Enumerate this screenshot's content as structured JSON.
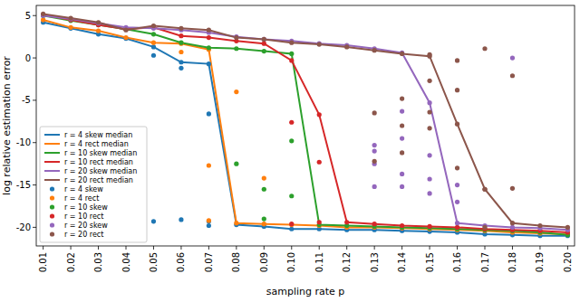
{
  "chart_data": {
    "type": "line",
    "x_label": "sampling rate p",
    "y_label": "log relative estimation error",
    "x": [
      0.01,
      0.02,
      0.03,
      0.04,
      0.05,
      0.06,
      0.07,
      0.08,
      0.09,
      0.1,
      0.11,
      0.12,
      0.13,
      0.14,
      0.15,
      0.16,
      0.17,
      0.18,
      0.19,
      0.2
    ],
    "xlim": [
      0.0075,
      0.2025
    ],
    "ylim": [
      -22.2,
      6.2
    ],
    "xticks": [
      0.01,
      0.02,
      0.03,
      0.04,
      0.05,
      0.06,
      0.07,
      0.08,
      0.09,
      {
        "value": 0.1,
        "label": "0.10"
      },
      0.11,
      0.12,
      0.13,
      0.14,
      0.15,
      0.16,
      0.17,
      0.18,
      0.19,
      {
        "value": 0.2,
        "label": "0.20"
      }
    ],
    "yticks": [
      -20,
      -15,
      -10,
      -5,
      0,
      5
    ],
    "grid": false,
    "legend": "lower left",
    "series": [
      {
        "name": "r = 4 skew median",
        "type": "line",
        "color": "#1f77b4",
        "values": [
          4.2,
          3.5,
          2.8,
          2.3,
          1.3,
          -0.5,
          -0.7,
          -19.7,
          -19.9,
          -20.2,
          -20.2,
          -20.3,
          -20.3,
          -20.4,
          -20.5,
          -20.6,
          -20.8,
          -20.9,
          -21.0,
          -21.0
        ]
      },
      {
        "name": "r = 4 rect median",
        "type": "line",
        "color": "#ff7f0e",
        "values": [
          4.5,
          3.6,
          3.2,
          2.4,
          1.8,
          1.7,
          1.0,
          -19.5,
          -19.6,
          -19.7,
          -19.8,
          -20.0,
          -20.0,
          -20.1,
          -20.2,
          -20.3,
          -20.4,
          -20.6,
          -20.7,
          -20.8
        ]
      },
      {
        "name": "r = 10 skew median",
        "type": "line",
        "color": "#2ca02c",
        "values": [
          5.0,
          4.4,
          3.9,
          3.4,
          2.8,
          1.8,
          1.2,
          1.1,
          0.8,
          0.5,
          -19.7,
          -19.8,
          -19.9,
          -20.0,
          -20.1,
          -20.2,
          -20.3,
          -20.4,
          -20.6,
          -20.9
        ]
      },
      {
        "name": "r = 10 rect median",
        "type": "line",
        "color": "#d62728",
        "values": [
          5.1,
          4.5,
          3.9,
          3.4,
          3.6,
          2.6,
          2.4,
          2.0,
          1.7,
          -0.3,
          -6.7,
          -19.4,
          -19.6,
          -19.8,
          -19.9,
          -20.0,
          -20.2,
          -20.3,
          -20.4,
          -20.6
        ]
      },
      {
        "name": "r = 20 skew median",
        "type": "line",
        "color": "#9467bd",
        "values": [
          5.0,
          4.6,
          4.1,
          3.6,
          3.5,
          3.3,
          3.0,
          2.5,
          2.2,
          2.0,
          1.7,
          1.5,
          1.1,
          0.6,
          -5.3,
          -19.5,
          -19.8,
          -20.0,
          -20.1,
          -20.3
        ]
      },
      {
        "name": "r = 20 rect median",
        "type": "line",
        "color": "#8c564b",
        "values": [
          5.2,
          4.7,
          4.2,
          3.3,
          3.8,
          3.5,
          3.3,
          2.4,
          2.2,
          1.8,
          1.6,
          1.3,
          0.9,
          0.5,
          0.2,
          -7.8,
          -15.5,
          -19.5,
          -19.8,
          -20.0
        ]
      },
      {
        "name": "r = 4 skew",
        "type": "scatter",
        "color": "#1f77b4",
        "x": [
          0.01,
          0.02,
          0.03,
          0.04,
          0.05,
          0.06,
          0.07,
          0.08,
          0.09,
          0.1,
          0.11,
          0.12,
          0.13,
          0.14,
          0.15,
          0.16,
          0.17,
          0.18,
          0.19,
          0.2,
          0.05,
          0.05,
          0.06,
          0.06,
          0.07,
          0.07,
          0.07
        ],
        "values": [
          4.2,
          3.5,
          2.8,
          2.3,
          1.3,
          -0.5,
          -0.7,
          -19.7,
          -19.9,
          -20.2,
          -20.2,
          -20.3,
          -20.3,
          -20.4,
          -20.5,
          -20.6,
          -20.8,
          -20.9,
          -21.0,
          -21.0,
          0.3,
          -19.3,
          -1.2,
          -19.1,
          -6.6,
          -19.3,
          -19.8
        ]
      },
      {
        "name": "r = 4 rect",
        "type": "scatter",
        "color": "#ff7f0e",
        "x": [
          0.01,
          0.02,
          0.03,
          0.04,
          0.05,
          0.06,
          0.07,
          0.08,
          0.09,
          0.1,
          0.11,
          0.12,
          0.13,
          0.14,
          0.15,
          0.16,
          0.17,
          0.18,
          0.19,
          0.2,
          0.06,
          0.07,
          0.07,
          0.08,
          0.09
        ],
        "values": [
          4.5,
          3.6,
          3.2,
          2.4,
          1.8,
          1.7,
          1.0,
          -19.5,
          -19.6,
          -19.7,
          -19.8,
          -20.0,
          -20.0,
          -20.1,
          -20.2,
          -20.3,
          -20.4,
          -20.6,
          -20.7,
          -20.8,
          0.7,
          -12.7,
          -19.2,
          -4.0,
          -14.2
        ]
      },
      {
        "name": "r = 10 skew",
        "type": "scatter",
        "color": "#2ca02c",
        "x": [
          0.01,
          0.02,
          0.03,
          0.04,
          0.05,
          0.06,
          0.07,
          0.08,
          0.09,
          0.1,
          0.11,
          0.12,
          0.13,
          0.14,
          0.15,
          0.16,
          0.17,
          0.18,
          0.19,
          0.2,
          0.08,
          0.09,
          0.09,
          0.1,
          0.1
        ],
        "values": [
          5.0,
          4.4,
          3.9,
          3.4,
          2.8,
          1.8,
          1.2,
          1.1,
          0.8,
          0.5,
          -19.7,
          -19.8,
          -19.9,
          -20.0,
          -20.1,
          -20.2,
          -20.3,
          -20.4,
          -20.6,
          -20.9,
          -12.5,
          -15.5,
          -19.0,
          -9.8,
          -16.3
        ]
      },
      {
        "name": "r = 10 rect",
        "type": "scatter",
        "color": "#d62728",
        "x": [
          0.01,
          0.02,
          0.03,
          0.04,
          0.05,
          0.06,
          0.07,
          0.08,
          0.09,
          0.1,
          0.11,
          0.12,
          0.13,
          0.14,
          0.15,
          0.16,
          0.17,
          0.18,
          0.19,
          0.2,
          0.1,
          0.1,
          0.11,
          0.11
        ],
        "values": [
          5.1,
          4.5,
          3.9,
          3.4,
          3.6,
          2.6,
          2.4,
          2.0,
          1.7,
          -0.3,
          -6.7,
          -19.4,
          -19.6,
          -19.8,
          -19.9,
          -20.0,
          -20.2,
          -20.3,
          -20.4,
          -20.6,
          -7.6,
          -19.6,
          -12.3,
          -19.4
        ]
      },
      {
        "name": "r = 20 skew",
        "type": "scatter",
        "color": "#9467bd",
        "x": [
          0.01,
          0.02,
          0.03,
          0.04,
          0.05,
          0.06,
          0.07,
          0.08,
          0.09,
          0.1,
          0.11,
          0.12,
          0.13,
          0.14,
          0.15,
          0.16,
          0.17,
          0.18,
          0.19,
          0.2,
          0.13,
          0.13,
          0.13,
          0.13,
          0.14,
          0.14,
          0.14,
          0.14,
          0.15,
          0.15,
          0.15,
          0.16,
          0.16,
          0.18
        ],
        "values": [
          5.0,
          4.6,
          4.1,
          3.6,
          3.5,
          3.3,
          3.0,
          2.5,
          2.2,
          2.0,
          1.7,
          1.5,
          1.1,
          0.6,
          -5.3,
          -19.5,
          -19.8,
          -20.0,
          -20.1,
          -20.3,
          -10.3,
          -11.0,
          -12.5,
          -15.2,
          -6.3,
          -9.5,
          -13.7,
          -15.2,
          -11.5,
          -14.3,
          -16.0,
          -17.0,
          -15.0,
          0.0
        ]
      },
      {
        "name": "r = 20 rect",
        "type": "scatter",
        "color": "#8c564b",
        "x": [
          0.01,
          0.02,
          0.03,
          0.04,
          0.05,
          0.06,
          0.07,
          0.08,
          0.09,
          0.1,
          0.11,
          0.12,
          0.13,
          0.14,
          0.15,
          0.16,
          0.17,
          0.18,
          0.19,
          0.2,
          0.13,
          0.13,
          0.14,
          0.14,
          0.14,
          0.15,
          0.15,
          0.15,
          0.15,
          0.16,
          0.16,
          0.16,
          0.17,
          0.17,
          0.17,
          0.18,
          0.18
        ],
        "values": [
          5.2,
          4.7,
          4.2,
          3.3,
          3.8,
          3.5,
          3.3,
          2.4,
          2.2,
          1.8,
          1.6,
          1.3,
          0.9,
          0.5,
          0.2,
          -7.8,
          -15.5,
          -19.5,
          -19.8,
          -20.0,
          -6.5,
          -12.2,
          -4.8,
          -8.0,
          -11.2,
          -2.7,
          -6.4,
          -8.3,
          0.4,
          -0.3,
          -3.8,
          -13.0,
          1.1,
          -15.5,
          -20.0,
          -2.1,
          -15.4
        ]
      }
    ]
  }
}
